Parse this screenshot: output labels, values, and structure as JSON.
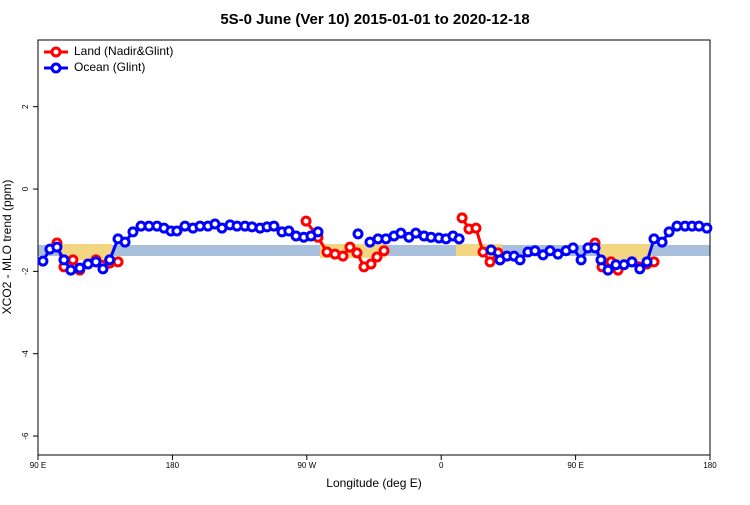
{
  "chart_data": {
    "type": "line",
    "title": "5S-0 June (Ver 10)   2015-01-01 to 2020-12-18",
    "x_label": "Longitude (deg E)",
    "y_label": "XCO2 - MLO trend (ppm)",
    "xlim": [
      90,
      540
    ],
    "ylim": [
      -6.46,
      3.62
    ],
    "xticks": [
      {
        "value": 90,
        "label": "90 E"
      },
      180,
      {
        "value": 270,
        "label": "90 W"
      },
      {
        "value": 360,
        "label": "0"
      },
      {
        "value": 450,
        "label": "90 E"
      },
      {
        "value": 540,
        "label": "180"
      }
    ],
    "yticks": [
      -6,
      -4,
      -2,
      0,
      2
    ],
    "legend": "top-left",
    "series": [
      {
        "name": "Land (Nadir&Glint)",
        "color": "#ff0000",
        "x": [
          102.7,
          107.4,
          113.4,
          118,
          128.8,
          138,
          143.6,
          null,
          269.5,
          277.5,
          283.5,
          288.9,
          294.2,
          298.9,
          303.6,
          308.3,
          313,
          317,
          321.7,
          null,
          374,
          378.6,
          383.3,
          388,
          392.7,
          398,
          null,
          463,
          467.7,
          473.7,
          478.4,
          487.7,
          497.8,
          502.5
        ],
        "values": [
          -1.31,
          -1.89,
          -1.72,
          -1.97,
          -1.72,
          -1.8,
          -1.77,
          null,
          -0.78,
          -1.17,
          -1.53,
          -1.58,
          -1.63,
          -1.41,
          -1.55,
          -1.89,
          -1.82,
          -1.65,
          -1.5,
          null,
          -0.7,
          -0.97,
          -0.95,
          -1.53,
          -1.77,
          -1.55,
          null,
          -1.31,
          -1.89,
          -1.77,
          -1.97,
          -1.77,
          -1.82,
          -1.77
        ]
      },
      {
        "name": "Ocean (Glint)",
        "color": "#0000ff",
        "x": [
          93.3,
          98,
          102.7,
          107.4,
          112,
          118,
          123.5,
          128.8,
          133.5,
          138,
          143.6,
          148.3,
          153.6,
          159,
          164.3,
          169.7,
          174.4,
          179,
          183,
          188.4,
          193.8,
          198.5,
          203.8,
          208.5,
          213.2,
          218.6,
          223.3,
          228.6,
          233.3,
          238.7,
          243.4,
          248,
          253.4,
          258,
          262.8,
          268,
          272.8,
          277.5,
          null,
          304.3,
          null,
          312.3,
          317.7,
          323,
          328.4,
          333,
          338.4,
          343,
          348.5,
          353.2,
          358.5,
          363.2,
          367.9,
          372,
          null,
          393.4,
          399.4,
          404,
          408.8,
          412.8,
          418.1,
          422.8,
          428.2,
          432.9,
          438.2,
          443.6,
          448.3,
          453.7,
          458.3,
          463,
          467,
          471.7,
          477,
          482.4,
          487.7,
          493,
          497.8,
          502.5,
          507.9,
          512.6,
          517.9,
          523.3,
          528,
          532.6,
          537.9
        ],
        "values": [
          -1.75,
          -1.46,
          -1.41,
          -1.72,
          -1.97,
          -1.92,
          -1.82,
          -1.77,
          -1.94,
          -1.72,
          -1.21,
          -1.29,
          -1.04,
          -0.9,
          -0.9,
          -0.9,
          -0.95,
          -1.02,
          -1.02,
          -0.9,
          -0.95,
          -0.9,
          -0.9,
          -0.85,
          -0.95,
          -0.87,
          -0.9,
          -0.9,
          -0.92,
          -0.95,
          -0.92,
          -0.9,
          -1.04,
          -1.02,
          -1.14,
          -1.17,
          -1.14,
          -1.04,
          null,
          -1.09,
          null,
          -1.29,
          -1.21,
          -1.21,
          -1.14,
          -1.07,
          -1.17,
          -1.07,
          -1.14,
          -1.17,
          -1.19,
          -1.21,
          -1.14,
          -1.21,
          null,
          -1.48,
          -1.72,
          -1.63,
          -1.63,
          -1.72,
          -1.53,
          -1.5,
          -1.6,
          -1.5,
          -1.58,
          -1.5,
          -1.43,
          -1.72,
          -1.43,
          -1.43,
          -1.72,
          -1.97,
          -1.84,
          -1.84,
          -1.77,
          -1.94,
          -1.77,
          -1.21,
          -1.29,
          -1.04,
          -0.9,
          -0.9,
          -0.9,
          -0.9,
          -0.95
        ]
      }
    ]
  }
}
